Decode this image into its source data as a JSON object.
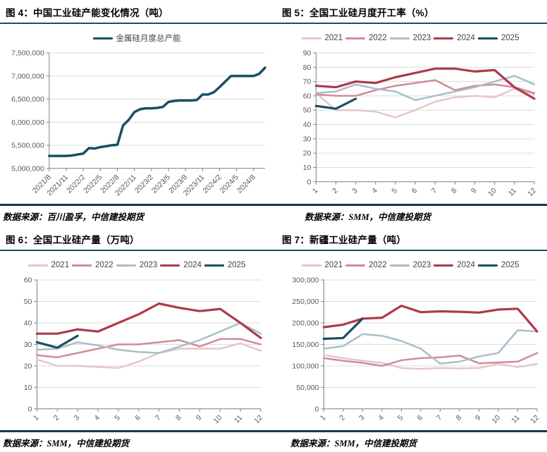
{
  "accent": {
    "title_rule": "#1b4e63",
    "source_rule": "#17394d"
  },
  "chart_data": [
    {
      "type": "line",
      "title": "图 4：中国工业硅产能变化情况（吨）",
      "source": "数据来源：百川盈孚，中信建投期货",
      "ylabel": "",
      "ylim": [
        5000000,
        7500000
      ],
      "ytick_step": 500000,
      "grid": "horizontal",
      "legend_position": "top",
      "x_tick_labels": [
        "2021/8",
        "2021/11",
        "2022/2",
        "2022/5",
        "2022/8",
        "2022/11",
        "2023/2",
        "2023/5",
        "2023/8",
        "2023/11",
        "2024/2",
        "2024/5",
        "2024/8"
      ],
      "x_tick_idx": [
        0,
        3,
        6,
        9,
        12,
        15,
        18,
        21,
        24,
        27,
        30,
        33,
        36
      ],
      "series": [
        {
          "name": "金属硅月度总产能",
          "color": "#1b4e63",
          "width": 3.5,
          "values": [
            5270000,
            5270000,
            5270000,
            5270000,
            5280000,
            5300000,
            5320000,
            5440000,
            5430000,
            5460000,
            5480000,
            5500000,
            5510000,
            5930000,
            6050000,
            6220000,
            6280000,
            6300000,
            6300000,
            6310000,
            6330000,
            6440000,
            6460000,
            6470000,
            6470000,
            6470000,
            6480000,
            6600000,
            6600000,
            6650000,
            6760000,
            6880000,
            7000000,
            7000000,
            7000000,
            7000000,
            7000000,
            7050000,
            7180000
          ]
        }
      ]
    },
    {
      "type": "line",
      "title": "图 5：全国工业硅月度开工率（%）",
      "source": "数据来源：SMM，中信建投期货",
      "ylabel": "",
      "ylim": [
        0,
        90
      ],
      "ytick_step": 10,
      "grid": "horizontal",
      "legend_position": "top",
      "x_tick_labels": [
        "1",
        "2",
        "3",
        "4",
        "5",
        "6",
        "7",
        "8",
        "9",
        "10",
        "11",
        "12"
      ],
      "x_tick_idx": [
        0,
        1,
        2,
        3,
        4,
        5,
        6,
        7,
        8,
        9,
        10,
        11
      ],
      "series": [
        {
          "name": "2021",
          "color": "#e4c6cd",
          "width": 2.5,
          "values": [
            62,
            50,
            50,
            49,
            45,
            50,
            56,
            59,
            60,
            59,
            65,
            61
          ]
        },
        {
          "name": "2022",
          "color": "#d28b98",
          "width": 2.5,
          "values": [
            61,
            60,
            60,
            64,
            67,
            69,
            71,
            64,
            67,
            68,
            66,
            62
          ]
        },
        {
          "name": "2023",
          "color": "#a9bfca",
          "width": 2.5,
          "values": [
            62,
            63,
            68,
            65,
            63,
            57,
            60,
            63,
            66,
            70,
            74,
            68
          ]
        },
        {
          "name": "2024",
          "color": "#ad3a4b",
          "width": 3.2,
          "values": [
            67,
            66,
            70,
            69,
            73,
            76,
            79,
            79,
            77,
            78,
            66,
            58
          ]
        },
        {
          "name": "2025",
          "color": "#1b4e63",
          "width": 3.2,
          "values": [
            53,
            51,
            58
          ]
        }
      ]
    },
    {
      "type": "line",
      "title": "图 6：全国工业硅产量（万吨）",
      "source": "数据来源：SMM，中信建投期货",
      "ylabel": "",
      "ylim": [
        0,
        60
      ],
      "ytick_step": 10,
      "grid": "horizontal",
      "legend_position": "top",
      "x_tick_labels": [
        "1",
        "2",
        "3",
        "4",
        "5",
        "6",
        "7",
        "8",
        "9",
        "10",
        "11",
        "12"
      ],
      "x_tick_idx": [
        0,
        1,
        2,
        3,
        4,
        5,
        6,
        7,
        8,
        9,
        10,
        11
      ],
      "series": [
        {
          "name": "2021",
          "color": "#e4c6cd",
          "width": 2.5,
          "values": [
            23,
            20,
            20,
            19.5,
            19,
            22,
            26,
            28,
            28,
            28,
            30.5,
            27
          ]
        },
        {
          "name": "2022",
          "color": "#d28b98",
          "width": 2.5,
          "values": [
            25,
            24,
            26,
            28,
            30,
            30,
            31,
            32,
            29,
            32.5,
            32.5,
            30
          ]
        },
        {
          "name": "2023",
          "color": "#a9bfca",
          "width": 2.5,
          "values": [
            27.5,
            28,
            31,
            29.5,
            27.5,
            26.5,
            26,
            29,
            32,
            36,
            40,
            35
          ]
        },
        {
          "name": "2024",
          "color": "#ad3a4b",
          "width": 3.2,
          "values": [
            35,
            35,
            37,
            36,
            40,
            44,
            49,
            47,
            45.5,
            46.5,
            40,
            33
          ]
        },
        {
          "name": "2025",
          "color": "#1b4e63",
          "width": 3.2,
          "values": [
            31,
            28.5,
            34
          ]
        }
      ]
    },
    {
      "type": "line",
      "title": "图 7：新疆工业硅产量（吨）",
      "source": "数据来源：SMM，中信建投期货",
      "ylabel": "",
      "ylim": [
        0,
        300000
      ],
      "ytick_step": 50000,
      "grid": "horizontal",
      "legend_position": "top",
      "x_tick_labels": [
        "1",
        "2",
        "3",
        "4",
        "5",
        "6",
        "7",
        "8",
        "9",
        "10",
        "11",
        "12"
      ],
      "x_tick_idx": [
        0,
        1,
        2,
        3,
        4,
        5,
        6,
        7,
        8,
        9,
        10,
        11
      ],
      "series": [
        {
          "name": "2021",
          "color": "#e4c6cd",
          "width": 2.5,
          "values": [
            125000,
            118000,
            112000,
            107000,
            95000,
            93000,
            95000,
            94000,
            95000,
            105000,
            97000,
            105000
          ]
        },
        {
          "name": "2022",
          "color": "#d28b98",
          "width": 2.5,
          "values": [
            118000,
            112000,
            107000,
            100000,
            113000,
            118000,
            120000,
            124000,
            106000,
            108000,
            110000,
            130000
          ]
        },
        {
          "name": "2023",
          "color": "#a9bfca",
          "width": 2.5,
          "values": [
            140000,
            146000,
            174000,
            170000,
            158000,
            140000,
            105000,
            110000,
            122000,
            130000,
            183000,
            180000
          ]
        },
        {
          "name": "2024",
          "color": "#ad3a4b",
          "width": 3.2,
          "values": [
            190000,
            196000,
            210000,
            212000,
            240000,
            225000,
            227000,
            226000,
            224000,
            231000,
            233000,
            180000
          ]
        },
        {
          "name": "2025",
          "color": "#1b4e63",
          "width": 3.2,
          "values": [
            163000,
            165000,
            210000
          ]
        }
      ]
    }
  ]
}
